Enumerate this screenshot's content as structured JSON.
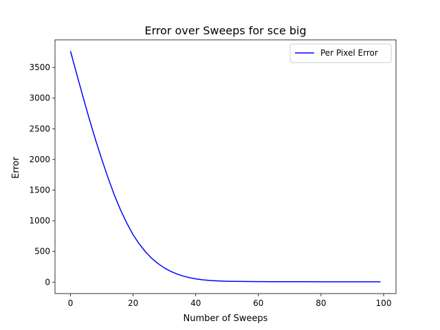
{
  "chart_data": {
    "type": "line",
    "title": "Error over Sweeps for sce big",
    "xlabel": "Number of Sweeps",
    "ylabel": "Error",
    "xlim": [
      -4.95,
      103.95
    ],
    "ylim": [
      -187,
      3950
    ],
    "xticks": [
      0,
      20,
      40,
      60,
      80,
      100
    ],
    "yticks": [
      0,
      500,
      1000,
      1500,
      2000,
      2500,
      3000,
      3500
    ],
    "grid": false,
    "legend_position": "top-right",
    "series": [
      {
        "name": "Per Pixel Error",
        "color": "#0000ff",
        "x": [
          0,
          2,
          4,
          6,
          8,
          10,
          12,
          14,
          16,
          18,
          20,
          22,
          24,
          26,
          28,
          30,
          32,
          34,
          36,
          38,
          40,
          42,
          44,
          46,
          48,
          50,
          55,
          60,
          65,
          70,
          75,
          80,
          85,
          90,
          95,
          99
        ],
        "y": [
          3765,
          3390,
          3020,
          2660,
          2320,
          2000,
          1700,
          1420,
          1175,
          960,
          770,
          620,
          490,
          385,
          300,
          230,
          175,
          132,
          98,
          72,
          53,
          39,
          29,
          22,
          17,
          14,
          10,
          8,
          7,
          6,
          6,
          5,
          5,
          5,
          5,
          5
        ]
      }
    ]
  }
}
